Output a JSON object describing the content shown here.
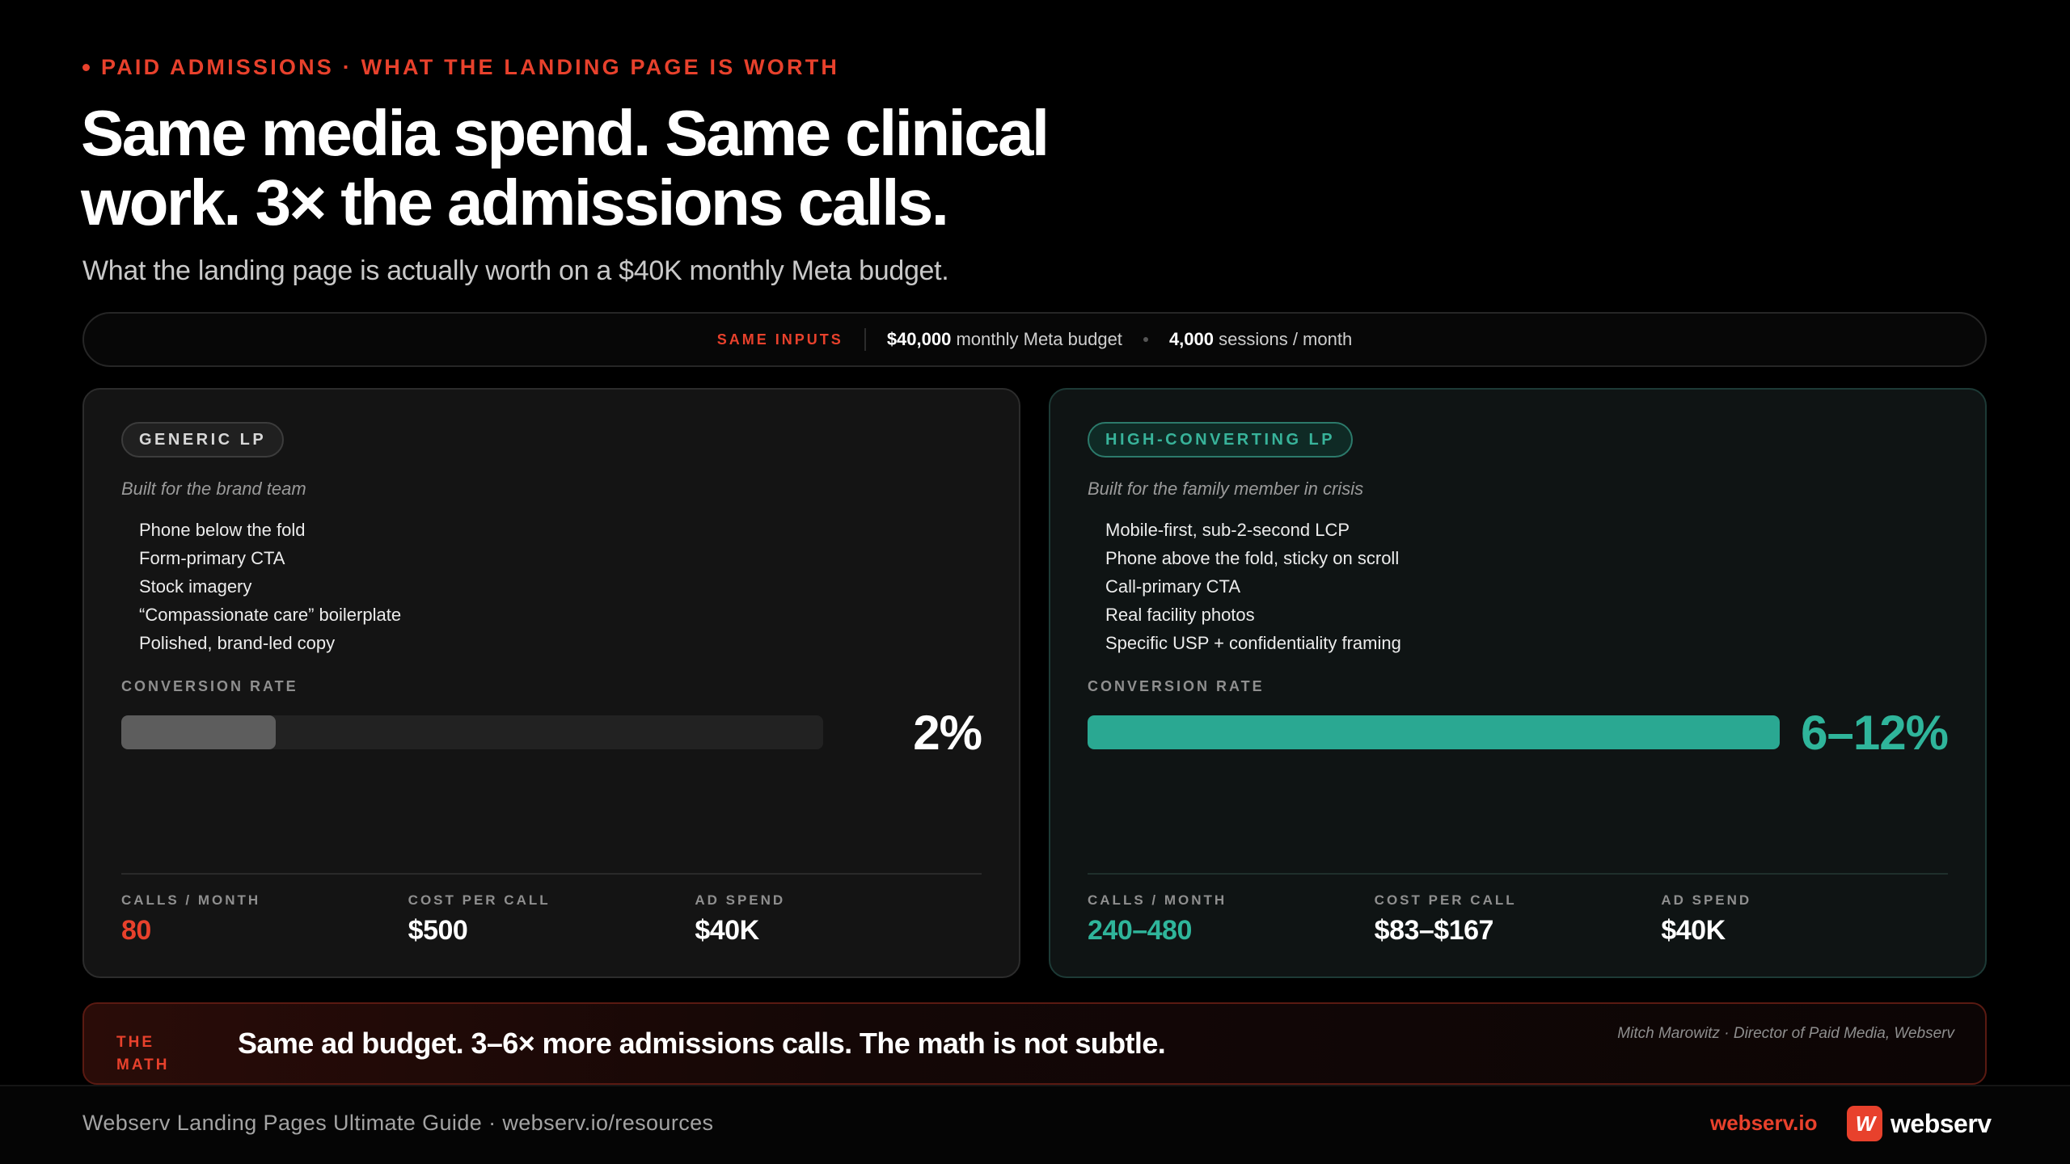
{
  "eyebrow": "PAID ADMISSIONS · WHAT THE LANDING PAGE IS WORTH",
  "headline": "Same media spend. Same clinical work. 3× the admissions calls.",
  "subhead": "What the landing page is actually worth on a $40K monthly Meta budget.",
  "inputs": {
    "tag": "SAME INPUTS",
    "budget_value": "$40,000",
    "budget_label": "monthly Meta budget",
    "sessions_value": "4,000",
    "sessions_label": "sessions / month"
  },
  "generic": {
    "pill": "GENERIC LP",
    "subtitle": "Built for the brand team",
    "features": [
      "Phone below the fold",
      "Form-primary CTA",
      "Stock imagery",
      "“Compassionate care” boilerplate",
      "Polished, brand-led copy"
    ],
    "conv_label": "CONVERSION RATE",
    "conv_value": "2%",
    "conv_fill": 0.22,
    "stats": [
      {
        "label": "CALLS / MONTH",
        "value": "80"
      },
      {
        "label": "COST PER CALL",
        "value": "$500"
      },
      {
        "label": "AD SPEND",
        "value": "$40K"
      }
    ]
  },
  "high": {
    "pill": "HIGH-CONVERTING LP",
    "subtitle": "Built for the family member in crisis",
    "features": [
      "Mobile-first, sub-2-second LCP",
      "Phone above the fold, sticky on scroll",
      "Call-primary CTA",
      "Real facility photos",
      "Specific USP + confidentiality framing"
    ],
    "conv_label": "CONVERSION RATE",
    "conv_value": "6–12%",
    "conv_fill": 1.0,
    "stats": [
      {
        "label": "CALLS / MONTH",
        "value": "240–480"
      },
      {
        "label": "COST PER CALL",
        "value": "$83–$167"
      },
      {
        "label": "AD SPEND",
        "value": "$40K"
      }
    ]
  },
  "math": {
    "tag": "THE MATH",
    "text": "Same ad budget. 3–6× more admissions calls. The math is not subtle.",
    "credit": "Mitch Marowitz · Director of Paid Media, Webserv"
  },
  "footer": {
    "left": "Webserv Landing Pages Ultimate Guide · webserv.io/resources",
    "link": "webserv.io",
    "brand_mark": "W",
    "brand_name": "webserv"
  },
  "colors": {
    "accent": "#e8412c",
    "teal": "#2fb59b"
  }
}
